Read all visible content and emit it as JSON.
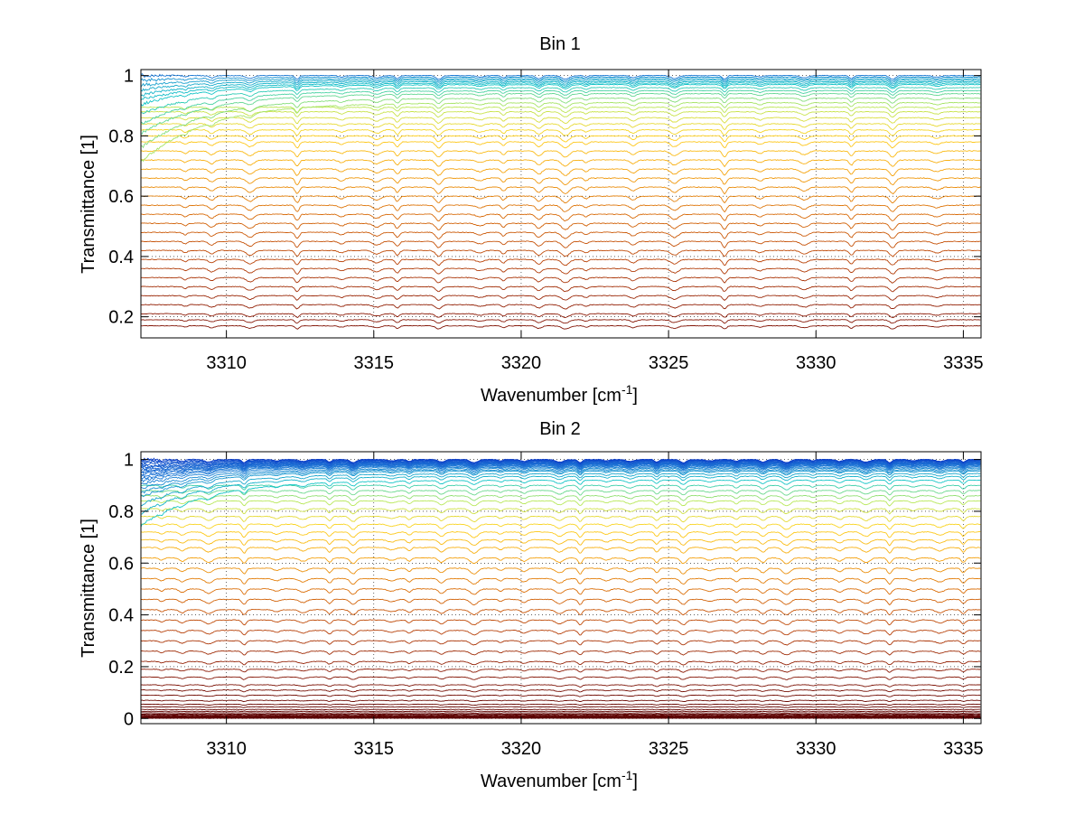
{
  "chart_data": [
    {
      "type": "line",
      "title": "Bin 1",
      "xlabel": "Wavenumber [cm",
      "xlabel_sup": "-1",
      "xlabel_end": "]",
      "ylabel": "Transmittance [1]",
      "xlim": [
        3307.1,
        3335.6
      ],
      "ylim": [
        0.13,
        1.02
      ],
      "xticks": [
        3310,
        3315,
        3320,
        3325,
        3330,
        3335
      ],
      "xtick_labels": [
        "3310",
        "3315",
        "3320",
        "3325",
        "3330",
        "3335"
      ],
      "yticks": [
        0.2,
        0.4,
        0.6,
        0.8,
        1
      ],
      "ytick_labels": [
        "0.2",
        "0.4",
        "0.6",
        "0.8",
        "1"
      ],
      "grid": "dotted",
      "colormap": "jet-reversed",
      "colors": [
        "#1f7bd6",
        "#16c7c7",
        "#b8e85a",
        "#ffd21f",
        "#f5a30f",
        "#d96c0a",
        "#b8420a",
        "#8a1a08",
        "#5a0000"
      ],
      "series_count": 40,
      "baseline_levels": [
        1.0,
        0.995,
        0.99,
        0.985,
        0.98,
        0.975,
        0.97,
        0.96,
        0.95,
        0.94,
        0.925,
        0.91,
        0.895,
        0.88,
        0.86,
        0.84,
        0.82,
        0.8,
        0.78,
        0.75,
        0.72,
        0.69,
        0.66,
        0.63,
        0.6,
        0.57,
        0.54,
        0.51,
        0.48,
        0.45,
        0.42,
        0.39,
        0.36,
        0.33,
        0.3,
        0.27,
        0.24,
        0.21,
        0.19,
        0.17
      ],
      "absorption_lines": [
        3308.6,
        3309.5,
        3310.8,
        3312.4,
        3313.9,
        3315.1,
        3315.8,
        3317.2,
        3318.6,
        3319.4,
        3320.6,
        3321.5,
        3322.2,
        3323.8,
        3325.2,
        3326.9,
        3328.1,
        3329.6,
        3331.2,
        3332.6,
        3334.1
      ]
    },
    {
      "type": "line",
      "title": "Bin 2",
      "xlabel": "Wavenumber [cm",
      "xlabel_sup": "-1",
      "xlabel_end": "]",
      "ylabel": "Transmittance [1]",
      "xlim": [
        3307.1,
        3335.6
      ],
      "ylim": [
        -0.02,
        1.03
      ],
      "xticks": [
        3310,
        3315,
        3320,
        3325,
        3330,
        3335
      ],
      "xtick_labels": [
        "3310",
        "3315",
        "3320",
        "3325",
        "3330",
        "3335"
      ],
      "yticks": [
        0,
        0.2,
        0.4,
        0.6,
        0.8,
        1
      ],
      "ytick_labels": [
        "0",
        "0.2",
        "0.4",
        "0.6",
        "0.8",
        "1"
      ],
      "grid": "dotted",
      "colormap": "jet-reversed",
      "colors": [
        "#0a3cc8",
        "#1f7bd6",
        "#16c7c7",
        "#b8e85a",
        "#ffd21f",
        "#f5a30f",
        "#d96c0a",
        "#b8420a",
        "#8a1a08",
        "#5a0000"
      ],
      "series_count": 60,
      "baseline_levels": [
        1.0,
        0.998,
        0.996,
        0.994,
        0.992,
        0.99,
        0.988,
        0.986,
        0.984,
        0.982,
        0.98,
        0.977,
        0.974,
        0.97,
        0.965,
        0.96,
        0.955,
        0.945,
        0.935,
        0.92,
        0.9,
        0.88,
        0.86,
        0.84,
        0.81,
        0.78,
        0.75,
        0.72,
        0.69,
        0.66,
        0.62,
        0.58,
        0.54,
        0.5,
        0.46,
        0.42,
        0.38,
        0.34,
        0.3,
        0.26,
        0.22,
        0.19,
        0.16,
        0.13,
        0.11,
        0.09,
        0.07,
        0.055,
        0.045,
        0.035,
        0.028,
        0.022,
        0.017,
        0.013,
        0.01,
        0.007,
        0.005,
        0.003,
        0.002,
        0.001
      ],
      "absorption_lines": [
        3307.8,
        3308.5,
        3309.4,
        3310.6,
        3311.7,
        3312.6,
        3313.5,
        3314.3,
        3315.6,
        3316.2,
        3317.3,
        3318.4,
        3319.3,
        3320.1,
        3321.3,
        3322.0,
        3322.9,
        3323.7,
        3324.6,
        3325.5,
        3326.4,
        3327.3,
        3328.2,
        3329.0,
        3329.9,
        3330.8,
        3331.7,
        3332.5,
        3333.3,
        3334.2,
        3335.0
      ]
    }
  ]
}
